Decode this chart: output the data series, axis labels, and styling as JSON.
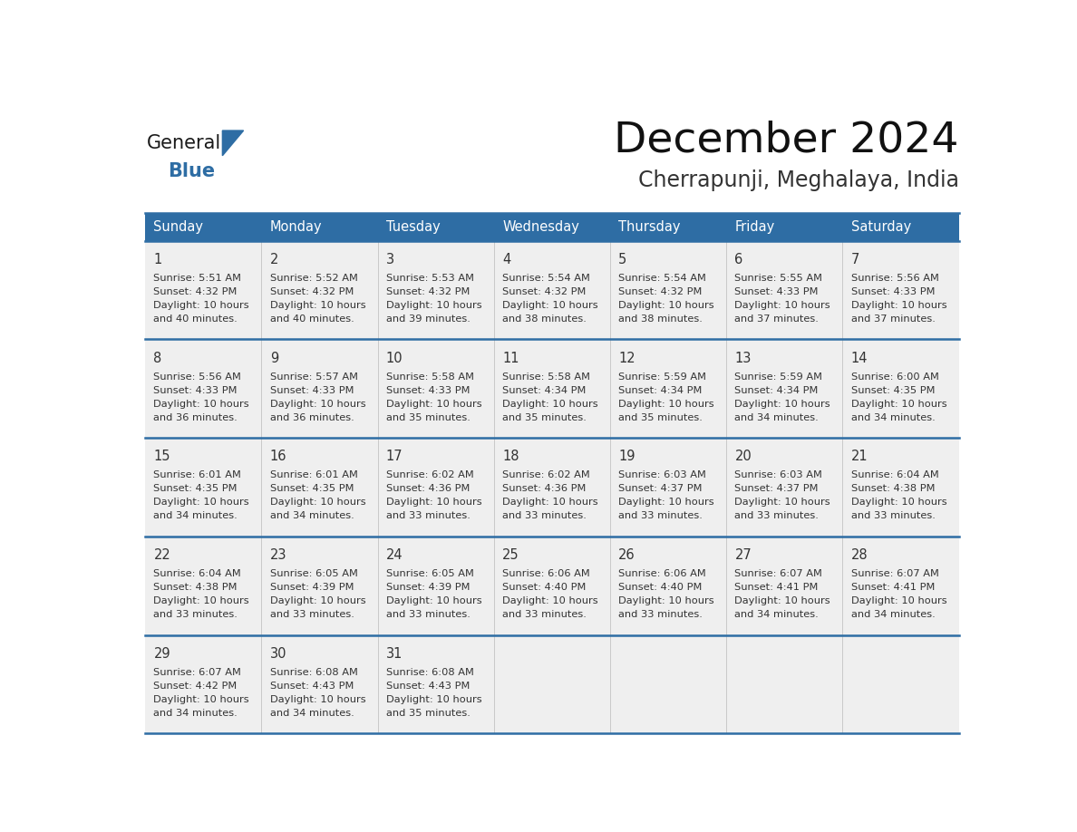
{
  "title": "December 2024",
  "subtitle": "Cherrapunji, Meghalaya, India",
  "header_bg_color": "#2E6DA4",
  "header_text_color": "#FFFFFF",
  "day_names": [
    "Sunday",
    "Monday",
    "Tuesday",
    "Wednesday",
    "Thursday",
    "Friday",
    "Saturday"
  ],
  "bg_color": "#FFFFFF",
  "cell_bg": "#EFEFEF",
  "grid_color": "#2E6DA4",
  "day_num_color": "#333333",
  "cell_text_color": "#333333",
  "logo_general_color": "#1a1a1a",
  "logo_blue_color": "#2E6DA4",
  "logo_triangle_color": "#2E6DA4",
  "calendar_data": [
    [
      {
        "day": 1,
        "sunrise": "5:51 AM",
        "sunset": "4:32 PM",
        "daylight_h": "10 hours",
        "daylight_m": "and 40 minutes."
      },
      {
        "day": 2,
        "sunrise": "5:52 AM",
        "sunset": "4:32 PM",
        "daylight_h": "10 hours",
        "daylight_m": "and 40 minutes."
      },
      {
        "day": 3,
        "sunrise": "5:53 AM",
        "sunset": "4:32 PM",
        "daylight_h": "10 hours",
        "daylight_m": "and 39 minutes."
      },
      {
        "day": 4,
        "sunrise": "5:54 AM",
        "sunset": "4:32 PM",
        "daylight_h": "10 hours",
        "daylight_m": "and 38 minutes."
      },
      {
        "day": 5,
        "sunrise": "5:54 AM",
        "sunset": "4:32 PM",
        "daylight_h": "10 hours",
        "daylight_m": "and 38 minutes."
      },
      {
        "day": 6,
        "sunrise": "5:55 AM",
        "sunset": "4:33 PM",
        "daylight_h": "10 hours",
        "daylight_m": "and 37 minutes."
      },
      {
        "day": 7,
        "sunrise": "5:56 AM",
        "sunset": "4:33 PM",
        "daylight_h": "10 hours",
        "daylight_m": "and 37 minutes."
      }
    ],
    [
      {
        "day": 8,
        "sunrise": "5:56 AM",
        "sunset": "4:33 PM",
        "daylight_h": "10 hours",
        "daylight_m": "and 36 minutes."
      },
      {
        "day": 9,
        "sunrise": "5:57 AM",
        "sunset": "4:33 PM",
        "daylight_h": "10 hours",
        "daylight_m": "and 36 minutes."
      },
      {
        "day": 10,
        "sunrise": "5:58 AM",
        "sunset": "4:33 PM",
        "daylight_h": "10 hours",
        "daylight_m": "and 35 minutes."
      },
      {
        "day": 11,
        "sunrise": "5:58 AM",
        "sunset": "4:34 PM",
        "daylight_h": "10 hours",
        "daylight_m": "and 35 minutes."
      },
      {
        "day": 12,
        "sunrise": "5:59 AM",
        "sunset": "4:34 PM",
        "daylight_h": "10 hours",
        "daylight_m": "and 35 minutes."
      },
      {
        "day": 13,
        "sunrise": "5:59 AM",
        "sunset": "4:34 PM",
        "daylight_h": "10 hours",
        "daylight_m": "and 34 minutes."
      },
      {
        "day": 14,
        "sunrise": "6:00 AM",
        "sunset": "4:35 PM",
        "daylight_h": "10 hours",
        "daylight_m": "and 34 minutes."
      }
    ],
    [
      {
        "day": 15,
        "sunrise": "6:01 AM",
        "sunset": "4:35 PM",
        "daylight_h": "10 hours",
        "daylight_m": "and 34 minutes."
      },
      {
        "day": 16,
        "sunrise": "6:01 AM",
        "sunset": "4:35 PM",
        "daylight_h": "10 hours",
        "daylight_m": "and 34 minutes."
      },
      {
        "day": 17,
        "sunrise": "6:02 AM",
        "sunset": "4:36 PM",
        "daylight_h": "10 hours",
        "daylight_m": "and 33 minutes."
      },
      {
        "day": 18,
        "sunrise": "6:02 AM",
        "sunset": "4:36 PM",
        "daylight_h": "10 hours",
        "daylight_m": "and 33 minutes."
      },
      {
        "day": 19,
        "sunrise": "6:03 AM",
        "sunset": "4:37 PM",
        "daylight_h": "10 hours",
        "daylight_m": "and 33 minutes."
      },
      {
        "day": 20,
        "sunrise": "6:03 AM",
        "sunset": "4:37 PM",
        "daylight_h": "10 hours",
        "daylight_m": "and 33 minutes."
      },
      {
        "day": 21,
        "sunrise": "6:04 AM",
        "sunset": "4:38 PM",
        "daylight_h": "10 hours",
        "daylight_m": "and 33 minutes."
      }
    ],
    [
      {
        "day": 22,
        "sunrise": "6:04 AM",
        "sunset": "4:38 PM",
        "daylight_h": "10 hours",
        "daylight_m": "and 33 minutes."
      },
      {
        "day": 23,
        "sunrise": "6:05 AM",
        "sunset": "4:39 PM",
        "daylight_h": "10 hours",
        "daylight_m": "and 33 minutes."
      },
      {
        "day": 24,
        "sunrise": "6:05 AM",
        "sunset": "4:39 PM",
        "daylight_h": "10 hours",
        "daylight_m": "and 33 minutes."
      },
      {
        "day": 25,
        "sunrise": "6:06 AM",
        "sunset": "4:40 PM",
        "daylight_h": "10 hours",
        "daylight_m": "and 33 minutes."
      },
      {
        "day": 26,
        "sunrise": "6:06 AM",
        "sunset": "4:40 PM",
        "daylight_h": "10 hours",
        "daylight_m": "and 33 minutes."
      },
      {
        "day": 27,
        "sunrise": "6:07 AM",
        "sunset": "4:41 PM",
        "daylight_h": "10 hours",
        "daylight_m": "and 34 minutes."
      },
      {
        "day": 28,
        "sunrise": "6:07 AM",
        "sunset": "4:41 PM",
        "daylight_h": "10 hours",
        "daylight_m": "and 34 minutes."
      }
    ],
    [
      {
        "day": 29,
        "sunrise": "6:07 AM",
        "sunset": "4:42 PM",
        "daylight_h": "10 hours",
        "daylight_m": "and 34 minutes."
      },
      {
        "day": 30,
        "sunrise": "6:08 AM",
        "sunset": "4:43 PM",
        "daylight_h": "10 hours",
        "daylight_m": "and 34 minutes."
      },
      {
        "day": 31,
        "sunrise": "6:08 AM",
        "sunset": "4:43 PM",
        "daylight_h": "10 hours",
        "daylight_m": "and 35 minutes."
      },
      null,
      null,
      null,
      null
    ]
  ]
}
